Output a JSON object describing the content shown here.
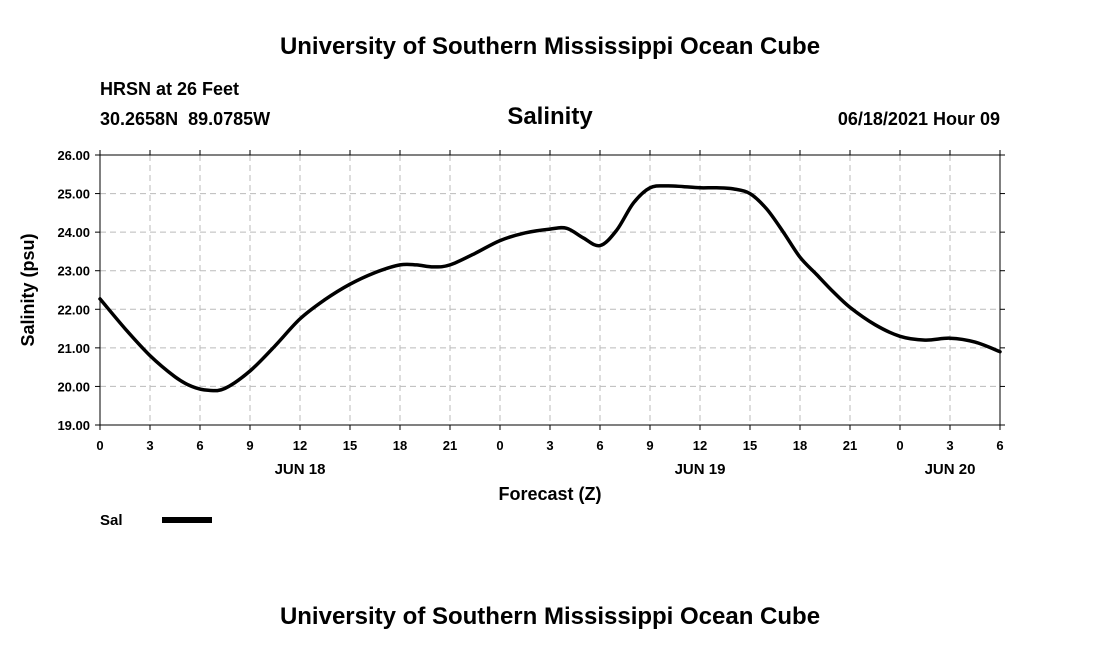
{
  "header": {
    "title_top": "University of Southern Mississippi Ocean Cube",
    "title_bottom": "University of Southern Mississippi Ocean Cube",
    "station": "HRSN at 26 Feet",
    "coords": "30.2658N  89.0785W",
    "variable": "Salinity",
    "timestamp": "06/18/2021 Hour 09"
  },
  "legend": {
    "label": "Sal"
  },
  "chart_data": {
    "type": "line",
    "title": "Salinity",
    "xlabel": "Forecast (Z)",
    "ylabel": "Salinity (psu)",
    "ylim": [
      19.0,
      26.0
    ],
    "xlim": [
      0,
      54
    ],
    "y_ticks": [
      "19.00",
      "20.00",
      "21.00",
      "22.00",
      "23.00",
      "24.00",
      "25.00",
      "26.00"
    ],
    "x_ticks": [
      "0",
      "3",
      "6",
      "9",
      "12",
      "15",
      "18",
      "21",
      "0",
      "3",
      "6",
      "9",
      "12",
      "15",
      "18",
      "21",
      "0",
      "3",
      "6"
    ],
    "date_labels": [
      {
        "label": "JUN 18",
        "at_hour": 12
      },
      {
        "label": "JUN 19",
        "at_hour": 36
      },
      {
        "label": "JUN 20",
        "at_hour": 51
      }
    ],
    "grid": true,
    "legend_position": "bottom-left",
    "series": [
      {
        "name": "Sal",
        "color": "#000000",
        "x": [
          0,
          1.5,
          3,
          4.5,
          5.5,
          6.5,
          7.5,
          9,
          10.5,
          12,
          13.5,
          15,
          16.5,
          18,
          19,
          20,
          21,
          22.5,
          24,
          25.5,
          27,
          28,
          29,
          30,
          31,
          32,
          33,
          34,
          35,
          36,
          37,
          38,
          39,
          40,
          41,
          42,
          43,
          44,
          45,
          46.5,
          48,
          49.5,
          51,
          52.5,
          54
        ],
        "values": [
          22.27,
          21.5,
          20.8,
          20.25,
          20.0,
          19.9,
          19.95,
          20.4,
          21.05,
          21.75,
          22.25,
          22.65,
          22.95,
          23.15,
          23.15,
          23.1,
          23.15,
          23.45,
          23.78,
          23.98,
          24.08,
          24.1,
          23.85,
          23.65,
          24.05,
          24.75,
          25.15,
          25.2,
          25.18,
          25.15,
          25.15,
          25.12,
          25.0,
          24.6,
          24.0,
          23.35,
          22.9,
          22.45,
          22.05,
          21.6,
          21.3,
          21.2,
          21.25,
          21.15,
          20.9
        ]
      }
    ]
  }
}
